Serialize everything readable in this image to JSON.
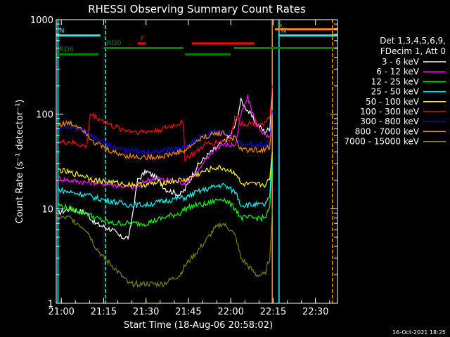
{
  "chart_data": {
    "type": "line",
    "title": "RHESSI Observing Summary Count Rates",
    "xlabel": "Start Time (18-Aug-06 20:58:02)",
    "ylabel": "Count Rate (s⁻¹ detector⁻¹)",
    "ylog": true,
    "ylim": [
      1,
      1000
    ],
    "xlim_minutes": [
      20.97,
      22.63
    ],
    "x_ticks": [
      {
        "label": "21:00",
        "t": 21.0
      },
      {
        "label": "21:15",
        "t": 21.25
      },
      {
        "label": "21:30",
        "t": 21.5
      },
      {
        "label": "21:45",
        "t": 21.75
      },
      {
        "label": "22:00",
        "t": 22.0
      },
      {
        "label": "22:15",
        "t": 22.25
      },
      {
        "label": "22:30",
        "t": 22.5
      }
    ],
    "y_ticks": [
      {
        "label": "1",
        "v": 1
      },
      {
        "label": "10",
        "v": 10
      },
      {
        "label": "100",
        "v": 100
      },
      {
        "label": "1000",
        "v": 1000
      }
    ],
    "legend_header": [
      "Det 1,3,4,5,6,9,",
      "FDecim 1, Att 0"
    ],
    "legend_placement": "right",
    "footer_date": "16-Oct-2021 18:25",
    "flags": [
      {
        "label": "N",
        "color": "#00ffff",
        "y": 680,
        "start": 20.97,
        "end": 21.23
      },
      {
        "label": "N",
        "color": "#00ffff",
        "y": 680,
        "start": 22.28,
        "end": 22.63
      },
      {
        "label": "S",
        "color": "#ff8c00",
        "y": 790,
        "start": 22.26,
        "end": 22.63
      },
      {
        "label": "F",
        "color": "#ff0000",
        "y": 560,
        "start": 21.45,
        "end": 21.5
      },
      {
        "label": "",
        "color": "#ff0000",
        "y": 560,
        "start": 21.77,
        "end": 22.14
      },
      {
        "label": "RD0",
        "color": "#008000",
        "y": 500,
        "start": 21.25,
        "end": 21.72
      },
      {
        "label": "",
        "color": "#008000",
        "y": 500,
        "start": 22.02,
        "end": 22.63
      },
      {
        "label": "RD6",
        "color": "#008000",
        "y": 430,
        "start": 20.97,
        "end": 21.22
      },
      {
        "label": "",
        "color": "#008000",
        "y": 430,
        "start": 21.73,
        "end": 22.0
      }
    ],
    "vlines": [
      {
        "t": 20.98,
        "color": "#00ffff",
        "dash": false
      },
      {
        "t": 21.26,
        "color": "#00ffff",
        "dash": true
      },
      {
        "t": 22.245,
        "color": "#ff8c00",
        "dash": false
      },
      {
        "t": 22.285,
        "color": "#00ffff",
        "dash": false
      },
      {
        "t": 22.6,
        "color": "#ff8c00",
        "dash": true
      }
    ],
    "series": [
      {
        "name": "3 - 6 keV",
        "color": "#ffffff",
        "x": [
          20.98,
          21.05,
          21.15,
          21.2,
          21.3,
          21.35,
          21.4,
          21.45,
          21.5,
          21.55,
          21.62,
          21.7,
          21.73,
          21.8,
          21.85,
          21.9,
          21.95,
          22.0,
          22.03,
          22.06,
          22.1,
          22.15,
          22.2,
          22.23,
          22.245
        ],
        "y": [
          9,
          10,
          9,
          7,
          6,
          5,
          5,
          20,
          25,
          22,
          16,
          14,
          16,
          28,
          35,
          42,
          50,
          60,
          80,
          140,
          110,
          80,
          65,
          70,
          190
        ]
      },
      {
        "name": "6 - 12 keV",
        "color": "#ff00ff",
        "x": [
          20.98,
          21.05,
          21.15,
          21.2,
          21.3,
          21.4,
          21.45,
          21.5,
          21.55,
          21.62,
          21.7,
          21.73,
          21.8,
          21.85,
          21.9,
          21.95,
          22.0,
          22.03,
          22.06,
          22.1,
          22.15,
          22.2,
          22.23,
          22.245
        ],
        "y": [
          21,
          20,
          19,
          19,
          18,
          17,
          17,
          20,
          21,
          20,
          19,
          19,
          24,
          32,
          42,
          48,
          47,
          48,
          100,
          150,
          80,
          60,
          55,
          60
        ]
      },
      {
        "name": "12 - 25 keV",
        "color": "#00ff00",
        "x": [
          20.98,
          21.05,
          21.15,
          21.2,
          21.3,
          21.4,
          21.5,
          21.6,
          21.7,
          21.73,
          21.8,
          21.85,
          21.9,
          21.95,
          22.0,
          22.03,
          22.06,
          22.1,
          22.15,
          22.2,
          22.23,
          22.245
        ],
        "y": [
          11,
          10,
          9,
          8,
          7,
          7,
          7,
          8,
          9,
          10,
          11,
          11,
          12,
          13,
          11,
          10,
          8,
          8,
          8,
          8,
          10,
          30
        ]
      },
      {
        "name": "25 - 50 keV",
        "color": "#00ffff",
        "x": [
          20.98,
          21.05,
          21.15,
          21.2,
          21.3,
          21.4,
          21.5,
          21.6,
          21.7,
          21.73,
          21.8,
          21.85,
          21.9,
          21.95,
          22.0,
          22.03,
          22.06,
          22.1,
          22.15,
          22.2,
          22.23,
          22.245
        ],
        "y": [
          16,
          15,
          14,
          13,
          12,
          11,
          11,
          12,
          13,
          13,
          15,
          16,
          17,
          18,
          16,
          15,
          11,
          11,
          11,
          11,
          13,
          35
        ]
      },
      {
        "name": "50 - 100 keV",
        "color": "#ffff00",
        "x": [
          20.98,
          21.05,
          21.15,
          21.2,
          21.3,
          21.4,
          21.5,
          21.6,
          21.7,
          21.73,
          21.8,
          21.85,
          21.9,
          21.95,
          22.0,
          22.03,
          22.06,
          22.1,
          22.15,
          22.2,
          22.23,
          22.245
        ],
        "y": [
          26,
          24,
          22,
          20,
          19,
          18,
          18,
          19,
          20,
          20,
          23,
          25,
          27,
          27,
          25,
          24,
          18,
          18,
          18,
          18,
          20,
          40
        ]
      },
      {
        "name": "100 - 300 keV",
        "color": "#ff0000",
        "x": [
          20.98,
          21.05,
          21.15,
          21.17,
          21.25,
          21.3,
          21.35,
          21.4,
          21.45,
          21.5,
          21.55,
          21.6,
          21.7,
          21.72,
          21.73,
          21.8,
          21.85,
          21.9,
          21.95,
          22.0,
          22.03,
          22.06,
          22.1,
          22.15,
          22.2,
          22.23,
          22.245
        ],
        "y": [
          50,
          51,
          45,
          100,
          85,
          75,
          70,
          67,
          65,
          65,
          67,
          70,
          80,
          82,
          34,
          40,
          48,
          50,
          52,
          55,
          100,
          80,
          80,
          80,
          80,
          90,
          200
        ]
      },
      {
        "name": "300 - 800 keV",
        "color": "#0000ff",
        "x": [
          20.98,
          21.05,
          21.12,
          21.2,
          21.3,
          21.4,
          21.5,
          21.6,
          21.7,
          21.73,
          21.8,
          21.85,
          21.9,
          21.95,
          22.0,
          22.03,
          22.06,
          22.1,
          22.15,
          22.2,
          22.23,
          22.245
        ],
        "y": [
          72,
          75,
          68,
          55,
          45,
          41,
          40,
          41,
          44,
          45,
          55,
          60,
          65,
          67,
          60,
          57,
          48,
          48,
          48,
          48,
          50,
          110
        ]
      },
      {
        "name": "800 - 7000 keV",
        "color": "#ff8c00",
        "x": [
          20.98,
          21.05,
          21.12,
          21.2,
          21.3,
          21.4,
          21.5,
          21.6,
          21.7,
          21.73,
          21.8,
          21.85,
          21.9,
          21.95,
          22.0,
          22.03,
          22.06,
          22.1,
          22.15,
          22.2,
          22.23,
          22.245
        ],
        "y": [
          78,
          80,
          72,
          50,
          40,
          36,
          35,
          36,
          40,
          41,
          52,
          58,
          62,
          64,
          56,
          55,
          42,
          42,
          42,
          42,
          45,
          100
        ]
      },
      {
        "name": "7000 - 15000 keV",
        "color": "#808000",
        "x": [
          20.98,
          21.05,
          21.15,
          21.2,
          21.25,
          21.3,
          21.35,
          21.4,
          21.5,
          21.6,
          21.7,
          21.73,
          21.8,
          21.85,
          21.9,
          21.95,
          22.0,
          22.03,
          22.06,
          22.1,
          22.15,
          22.2,
          22.23,
          22.245
        ],
        "y": [
          8,
          8,
          6,
          4,
          3,
          2.5,
          2,
          1.6,
          1.6,
          1.6,
          2,
          2.5,
          3.5,
          4.5,
          6,
          7,
          6,
          5,
          3,
          2.5,
          2,
          2,
          3,
          10
        ]
      }
    ]
  }
}
